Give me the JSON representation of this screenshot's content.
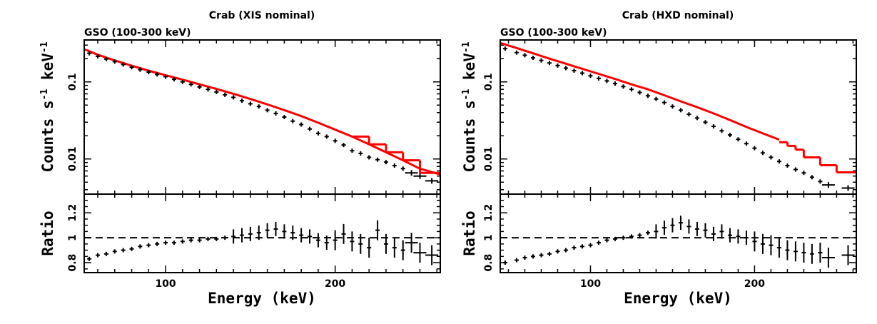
{
  "chart_data": [
    {
      "type": "scatter",
      "title": "Crab (XIS nominal)",
      "subtitle": "GSO (100-300 keV)",
      "xlabel": "Energy (keV)",
      "ylabel": "Counts s",
      "ylabel_sup": "-1",
      "ylabel_mid": " keV",
      "ylabel_sup2": "-1",
      "ratio_ylabel": "Ratio",
      "xlim": [
        52,
        262
      ],
      "ylim": [
        0.0035,
        0.35
      ],
      "yscale": "log",
      "ratio_ylim": [
        0.72,
        1.35
      ],
      "x_ticks": [
        100,
        200
      ],
      "x_tick_labels": [
        "100",
        "200"
      ],
      "y_ticks": [
        0.1,
        0.01
      ],
      "y_tick_labels": [
        "0.1",
        "0.01"
      ],
      "ratio_ticks": [
        0.8,
        1,
        1.2
      ],
      "ratio_tick_labels": [
        "0.8",
        "1",
        "1.2"
      ],
      "data_color": "#000000",
      "model_color": "#ff0000",
      "data": {
        "x": [
          55,
          60,
          65,
          70,
          75,
          80,
          85,
          90,
          95,
          100,
          105,
          110,
          115,
          120,
          125,
          130,
          135,
          140,
          145,
          150,
          155,
          160,
          165,
          170,
          175,
          180,
          185,
          190,
          195,
          200,
          205,
          210,
          215,
          220,
          225,
          230,
          235,
          240,
          245,
          250,
          257
        ],
        "y": [
          0.235,
          0.215,
          0.198,
          0.183,
          0.168,
          0.155,
          0.144,
          0.134,
          0.125,
          0.117,
          0.108,
          0.1,
          0.093,
          0.086,
          0.08,
          0.074,
          0.068,
          0.063,
          0.057,
          0.052,
          0.048,
          0.043,
          0.039,
          0.035,
          0.031,
          0.028,
          0.0245,
          0.0215,
          0.0195,
          0.0172,
          0.0152,
          0.0128,
          0.0118,
          0.0105,
          0.0098,
          0.0091,
          0.0082,
          0.0075,
          0.0066,
          0.006,
          0.0052
        ],
        "ratio": [
          0.83,
          0.86,
          0.87,
          0.89,
          0.9,
          0.91,
          0.93,
          0.94,
          0.95,
          0.96,
          0.96,
          0.97,
          0.98,
          0.98,
          0.99,
          0.99,
          1.0,
          1.01,
          1.02,
          1.03,
          1.04,
          1.06,
          1.07,
          1.05,
          1.04,
          1.02,
          1.01,
          0.98,
          0.96,
          0.98,
          1.03,
          0.97,
          0.95,
          0.92,
          1.06,
          0.95,
          0.92,
          0.9,
          0.96,
          0.88,
          0.86
        ]
      },
      "model": {
        "x": [
          52,
          60,
          70,
          80,
          90,
          100,
          110,
          120,
          130,
          140,
          150,
          160,
          170,
          180,
          190,
          200,
          210,
          220,
          230,
          240,
          250,
          262
        ],
        "y": [
          0.265,
          0.225,
          0.19,
          0.162,
          0.14,
          0.122,
          0.107,
          0.093,
          0.081,
          0.07,
          0.06,
          0.051,
          0.043,
          0.036,
          0.0295,
          0.024,
          0.0195,
          0.0155,
          0.0122,
          0.0096,
          0.0075,
          0.0063
        ],
        "steps": [
          [
            210,
            220,
            0.0195
          ],
          [
            220,
            230,
            0.0155
          ],
          [
            230,
            240,
            0.0122
          ],
          [
            240,
            250,
            0.0096
          ],
          [
            250,
            262,
            0.0066
          ]
        ]
      }
    },
    {
      "type": "scatter",
      "title": "Crab (HXD nominal)",
      "subtitle": "GSO (100-300 keV)",
      "xlabel": "Energy (keV)",
      "ylabel": "Counts s",
      "ylabel_sup": "-1",
      "ylabel_mid": " keV",
      "ylabel_sup2": "-1",
      "ratio_ylabel": "Ratio",
      "xlim": [
        45,
        262
      ],
      "ylim": [
        0.0035,
        0.35
      ],
      "yscale": "log",
      "ratio_ylim": [
        0.72,
        1.35
      ],
      "x_ticks": [
        100,
        200
      ],
      "x_tick_labels": [
        "100",
        "200"
      ],
      "y_ticks": [
        0.1,
        0.01
      ],
      "y_tick_labels": [
        "0.1",
        "0.01"
      ],
      "ratio_ticks": [
        0.8,
        1,
        1.2
      ],
      "ratio_tick_labels": [
        "0.8",
        "1",
        "1.2"
      ],
      "data_color": "#000000",
      "model_color": "#ff0000",
      "data": {
        "x": [
          48,
          55,
          60,
          65,
          70,
          75,
          80,
          85,
          90,
          95,
          100,
          105,
          110,
          115,
          120,
          125,
          130,
          135,
          140,
          145,
          150,
          155,
          160,
          165,
          170,
          175,
          180,
          185,
          190,
          195,
          200,
          205,
          210,
          215,
          220,
          225,
          230,
          235,
          240,
          245,
          257
        ],
        "y": [
          0.27,
          0.24,
          0.222,
          0.205,
          0.19,
          0.176,
          0.163,
          0.151,
          0.14,
          0.13,
          0.12,
          0.111,
          0.103,
          0.095,
          0.087,
          0.08,
          0.073,
          0.066,
          0.06,
          0.054,
          0.048,
          0.043,
          0.038,
          0.034,
          0.03,
          0.0265,
          0.0232,
          0.0205,
          0.018,
          0.0158,
          0.0138,
          0.012,
          0.0105,
          0.0093,
          0.0082,
          0.0073,
          0.0066,
          0.0058,
          0.0051,
          0.0046,
          0.0042
        ],
        "ratio": [
          0.8,
          0.82,
          0.84,
          0.85,
          0.86,
          0.87,
          0.89,
          0.9,
          0.92,
          0.93,
          0.94,
          0.96,
          0.98,
          0.99,
          1.0,
          1.01,
          1.02,
          1.04,
          1.05,
          1.08,
          1.1,
          1.12,
          1.09,
          1.07,
          1.06,
          1.03,
          1.05,
          1.02,
          1.01,
          1.0,
          0.97,
          0.95,
          0.94,
          0.92,
          0.9,
          0.89,
          0.88,
          0.87,
          0.88,
          0.84,
          0.86
        ]
      },
      "model": {
        "x": [
          45,
          55,
          65,
          75,
          85,
          95,
          105,
          115,
          125,
          135,
          145,
          155,
          165,
          175,
          185,
          195,
          205,
          215
        ],
        "y": [
          0.32,
          0.275,
          0.235,
          0.2,
          0.172,
          0.148,
          0.127,
          0.109,
          0.093,
          0.08,
          0.067,
          0.056,
          0.047,
          0.039,
          0.032,
          0.026,
          0.0215,
          0.0178
        ],
        "steps": [
          [
            215,
            220,
            0.0165
          ],
          [
            220,
            225,
            0.0148
          ],
          [
            225,
            230,
            0.0132
          ],
          [
            230,
            240,
            0.0105
          ],
          [
            240,
            250,
            0.0083
          ],
          [
            250,
            262,
            0.0067
          ]
        ]
      }
    }
  ]
}
